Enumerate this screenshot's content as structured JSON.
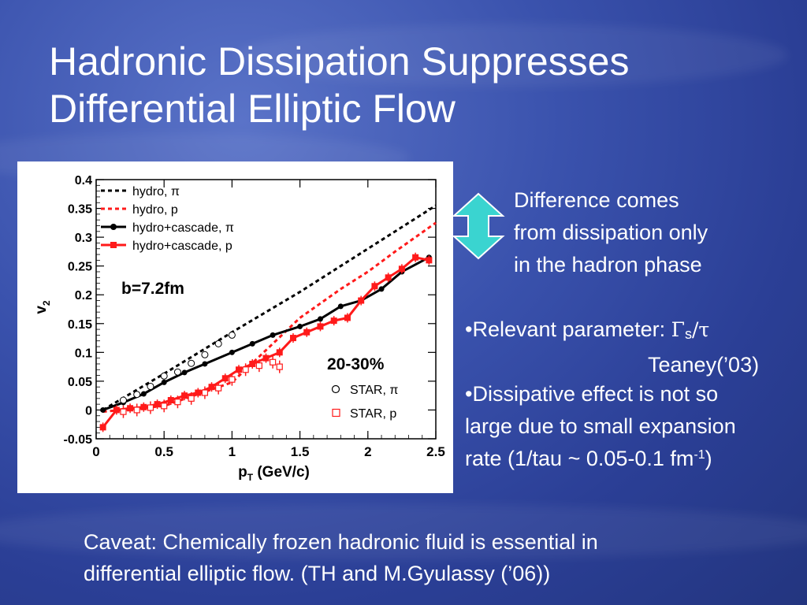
{
  "slide": {
    "title_line1": "Hadronic Dissipation Suppresses",
    "title_line2": "Differential Elliptic Flow",
    "diff_line1": "Difference comes",
    "diff_line2": "from dissipation only",
    "diff_line3": "in the hadron phase",
    "relevant_prefix": "•Relevant parameter: ",
    "relevant_gamma": "Γ",
    "relevant_sub": "s",
    "relevant_tail": "/τ",
    "teaney": "Teaney(’03)",
    "dissip_line1": "•Dissipative effect is not so",
    "dissip_line2": "large due to small expansion",
    "dissip_line3_a": "rate (1/tau ~ 0.05-0.1 fm",
    "dissip_line3_sup": "-1",
    "dissip_line3_b": ")",
    "caveat_line1": "Caveat: Chemically frozen hadronic fluid is essential in",
    "caveat_line2": "differential elliptic flow. (TH and M.Gyulassy (’06))",
    "arrow_color": "#3ad4d0"
  },
  "chart_data": {
    "type": "line",
    "xlabel": "p_T (GeV/c)",
    "ylabel": "v_2",
    "xlim": [
      0,
      2.5
    ],
    "ylim": [
      -0.05,
      0.4
    ],
    "x_ticks": [
      "0",
      "0.5",
      "1",
      "1.5",
      "2",
      "2.5"
    ],
    "y_ticks": [
      "-0.05",
      "0",
      "0.05",
      "0.1",
      "0.15",
      "0.2",
      "0.25",
      "0.3",
      "0.35",
      "0.4"
    ],
    "annotations": [
      "b=7.2fm",
      "20-30%"
    ],
    "series": [
      {
        "name": "hydro, π",
        "style": "dashed",
        "color": "#000000",
        "x": [
          0.05,
          0.5,
          1.0,
          1.5,
          2.0,
          2.5
        ],
        "y": [
          0.0,
          0.063,
          0.135,
          0.205,
          0.28,
          0.355
        ]
      },
      {
        "name": "hydro, p",
        "style": "dashed",
        "color": "#ff1a1a",
        "x": [
          0.05,
          0.5,
          1.0,
          1.3,
          1.5,
          1.8,
          2.0,
          2.2,
          2.5
        ],
        "y": [
          -0.003,
          0.007,
          0.048,
          0.115,
          0.16,
          0.21,
          0.24,
          0.275,
          0.325
        ]
      },
      {
        "name": "hydro+cascade, π",
        "style": "solid",
        "color": "#000000",
        "marker": "circle",
        "x": [
          0.05,
          0.2,
          0.35,
          0.5,
          0.65,
          0.8,
          1.0,
          1.15,
          1.3,
          1.5,
          1.65,
          1.8,
          1.95,
          2.1,
          2.25,
          2.45
        ],
        "y": [
          0.0,
          0.013,
          0.028,
          0.048,
          0.065,
          0.08,
          0.1,
          0.115,
          0.13,
          0.145,
          0.158,
          0.18,
          0.19,
          0.21,
          0.24,
          0.265
        ]
      },
      {
        "name": "hydro+cascade, p",
        "style": "solid",
        "color": "#ff1a1a",
        "marker": "square",
        "x": [
          0.05,
          0.15,
          0.25,
          0.35,
          0.45,
          0.55,
          0.65,
          0.75,
          0.85,
          0.95,
          1.05,
          1.15,
          1.25,
          1.35,
          1.45,
          1.55,
          1.65,
          1.75,
          1.85,
          1.95,
          2.05,
          2.15,
          2.25,
          2.35,
          2.45
        ],
        "y": [
          -0.03,
          0.0,
          0.003,
          0.005,
          0.01,
          0.017,
          0.025,
          0.03,
          0.04,
          0.055,
          0.07,
          0.08,
          0.09,
          0.1,
          0.125,
          0.135,
          0.145,
          0.155,
          0.16,
          0.19,
          0.215,
          0.23,
          0.245,
          0.265,
          0.26
        ]
      },
      {
        "name": "STAR, π",
        "style": "markers",
        "color": "#000000",
        "marker": "open-circle",
        "x": [
          0.2,
          0.3,
          0.4,
          0.5,
          0.6,
          0.7,
          0.8,
          0.9,
          1.0
        ],
        "y": [
          0.017,
          0.027,
          0.041,
          0.059,
          0.066,
          0.081,
          0.096,
          0.115,
          0.13
        ]
      },
      {
        "name": "STAR, p",
        "style": "markers",
        "color": "#ff1a1a",
        "marker": "open-square",
        "x": [
          0.2,
          0.3,
          0.4,
          0.5,
          0.6,
          0.7,
          0.8,
          0.9,
          1.0,
          1.1,
          1.2,
          1.3,
          1.35
        ],
        "y": [
          -0.003,
          0.0,
          0.004,
          0.007,
          0.014,
          0.02,
          0.03,
          0.038,
          0.053,
          0.07,
          0.077,
          0.083,
          0.075
        ]
      }
    ],
    "legend_position": "top-left"
  }
}
